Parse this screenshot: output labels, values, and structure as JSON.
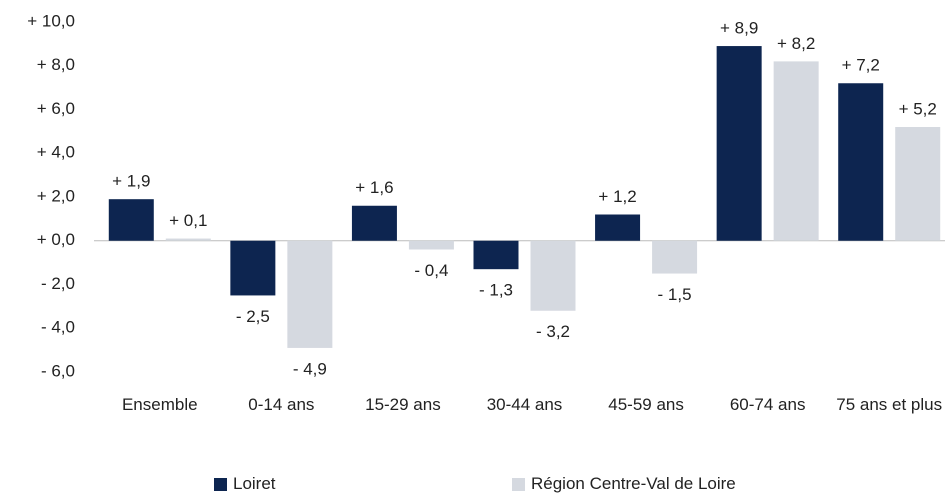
{
  "chart_data": {
    "type": "bar",
    "categories": [
      "Ensemble",
      "0-14 ans",
      "15-29 ans",
      "30-44 ans",
      "45-59 ans",
      "60-74 ans",
      "75 ans et plus"
    ],
    "series": [
      {
        "name": "Loiret",
        "color": "#0d2550",
        "values": [
          1.9,
          -2.5,
          1.6,
          -1.3,
          1.2,
          8.9,
          7.2
        ],
        "value_labels": [
          "+ 1,9",
          "- 2,5",
          "+ 1,6",
          "- 1,3",
          "+ 1,2",
          "+ 8,9",
          "+ 7,2"
        ]
      },
      {
        "name": "Région Centre-Val de Loire",
        "color": "#d5d9e0",
        "values": [
          0.1,
          -4.9,
          -0.4,
          -3.2,
          -1.5,
          8.2,
          5.2
        ],
        "value_labels": [
          "+ 0,1",
          "- 4,9",
          "- 0,4",
          "- 3,2",
          "- 1,5",
          "+ 8,2",
          "+ 5,2"
        ]
      }
    ],
    "ylim": [
      -6,
      10
    ],
    "yticks": [
      {
        "value": 10,
        "label": "+ 10,0"
      },
      {
        "value": 8,
        "label": "+ 8,0"
      },
      {
        "value": 6,
        "label": "+ 6,0"
      },
      {
        "value": 4,
        "label": "+ 4,0"
      },
      {
        "value": 2,
        "label": "+ 2,0"
      },
      {
        "value": 0,
        "label": "+ 0,0"
      },
      {
        "value": -2,
        "label": "- 2,0"
      },
      {
        "value": -4,
        "label": "- 4,0"
      },
      {
        "value": -6,
        "label": "- 6,0"
      }
    ],
    "grid": false,
    "legend": "bottom"
  }
}
